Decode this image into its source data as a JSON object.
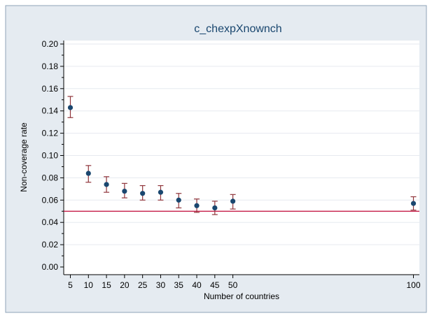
{
  "chart_data": {
    "type": "scatter",
    "title": "c_chexpXnownch",
    "xlabel": "Number of countries",
    "ylabel": "Non-coverage rate",
    "x_ticks": [
      5,
      10,
      15,
      20,
      25,
      30,
      35,
      40,
      45,
      50,
      100
    ],
    "y_ticks": [
      "0.00",
      "0.02",
      "0.04",
      "0.06",
      "0.08",
      "0.10",
      "0.12",
      "0.14",
      "0.16",
      "0.18",
      "0.20"
    ],
    "xlim": [
      5,
      100
    ],
    "ylim": [
      0,
      0.2
    ],
    "grid": true,
    "legend": "none",
    "reference_line": 0.05,
    "series": [
      {
        "x": [
          5,
          10,
          15,
          20,
          25,
          30,
          35,
          40,
          45,
          50,
          100
        ],
        "y": [
          0.143,
          0.084,
          0.074,
          0.068,
          0.066,
          0.067,
          0.06,
          0.055,
          0.053,
          0.059,
          0.057
        ],
        "y_lower": [
          0.134,
          0.076,
          0.067,
          0.062,
          0.06,
          0.06,
          0.053,
          0.049,
          0.047,
          0.052,
          0.051
        ],
        "y_upper": [
          0.153,
          0.091,
          0.081,
          0.075,
          0.073,
          0.073,
          0.066,
          0.061,
          0.059,
          0.065,
          0.063
        ]
      }
    ],
    "colors": {
      "frame_bg": "#e5ebf1",
      "plot_bg": "#ffffff",
      "grid": "#e6eaef",
      "point": "#1a476f",
      "error_bar": "#90353b",
      "reference_line": "#c10534",
      "title": "#1a476f",
      "axis_text": "#000000"
    }
  }
}
